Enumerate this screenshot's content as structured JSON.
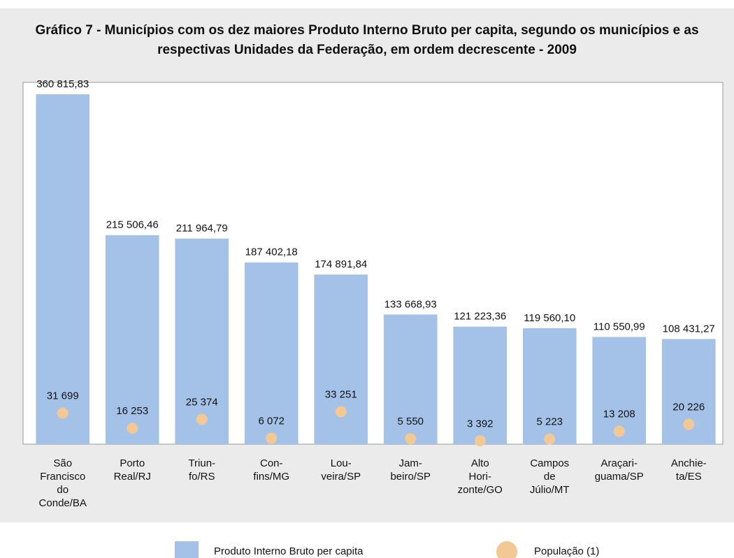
{
  "chart_data": {
    "type": "bar",
    "title": "Gráfico 7 - Municípios com os dez maiores Produto Interno Bruto per capita, segundo os municípios e as respectivas Unidades da Federação, em ordem decrescente - 2009",
    "categories": [
      "São\nFrancisco\ndo\nConde/BA",
      "Porto\nReal/RJ",
      "Triun-\nfo/RS",
      "Con-\nfins/MG",
      "Lou-\nveira/SP",
      "Jam-\nbeiro/SP",
      "Alto\nHori-\nzonte/GO",
      "Campos\nde\nJúlio/MT",
      "Araçari-\nguama/SP",
      "Anchie-\nta/ES"
    ],
    "series": [
      {
        "name": "Produto Interno Bruto per capita",
        "color": "#a4c2e8",
        "type": "bar",
        "values": [
          360815.83,
          215506.46,
          211964.79,
          187402.18,
          174891.84,
          133668.93,
          121223.36,
          119560.1,
          110550.99,
          108431.27
        ],
        "value_labels": [
          "360 815,83",
          "215 506,46",
          "211 964,79",
          "187 402,18",
          "174 891,84",
          "133 668,93",
          "121 223,36",
          "119 560,10",
          "110 550,99",
          "108 431,27"
        ]
      },
      {
        "name": "População (1)",
        "color": "#f2c995",
        "type": "scatter",
        "axis": "y2",
        "values": [
          31699,
          16253,
          25374,
          6072,
          33251,
          5550,
          3392,
          5223,
          13208,
          20226
        ],
        "value_labels": [
          "31 699",
          "16 253",
          "25 374",
          "6 072",
          "33 251",
          "5 550",
          "3 392",
          "5 223",
          "13 208",
          "20 226"
        ]
      }
    ],
    "ylim": [
      0,
      373000
    ],
    "y2lim": [
      0,
      370000
    ]
  }
}
